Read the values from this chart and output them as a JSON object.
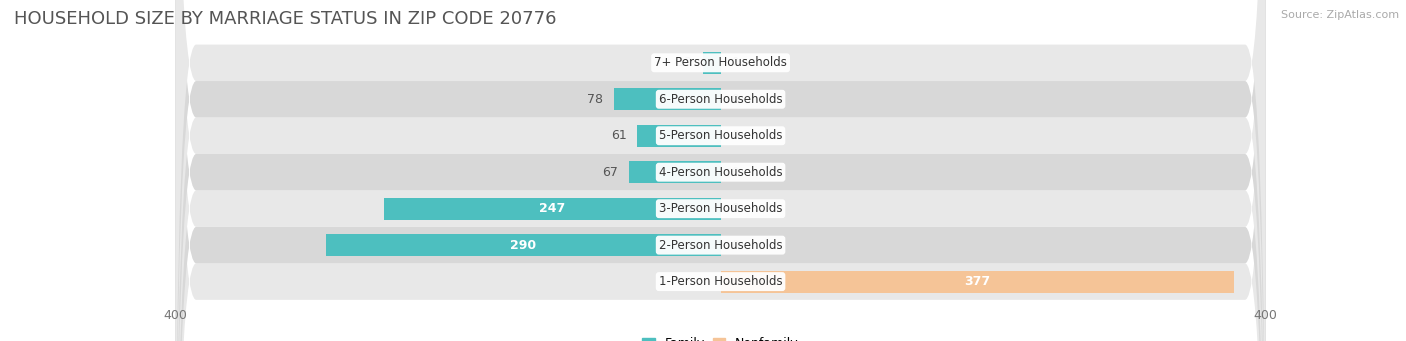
{
  "title": "HOUSEHOLD SIZE BY MARRIAGE STATUS IN ZIP CODE 20776",
  "source": "Source: ZipAtlas.com",
  "categories": [
    "1-Person Households",
    "2-Person Households",
    "3-Person Households",
    "4-Person Households",
    "5-Person Households",
    "6-Person Households",
    "7+ Person Households"
  ],
  "family_values": [
    0,
    290,
    247,
    67,
    61,
    78,
    13
  ],
  "nonfamily_values": [
    377,
    0,
    0,
    0,
    0,
    0,
    0
  ],
  "family_color": "#4DBFBF",
  "nonfamily_color": "#F5C497",
  "axis_limit": 400,
  "bar_height": 0.6,
  "title_fontsize": 13,
  "label_fontsize": 9,
  "tick_fontsize": 9,
  "source_fontsize": 8
}
